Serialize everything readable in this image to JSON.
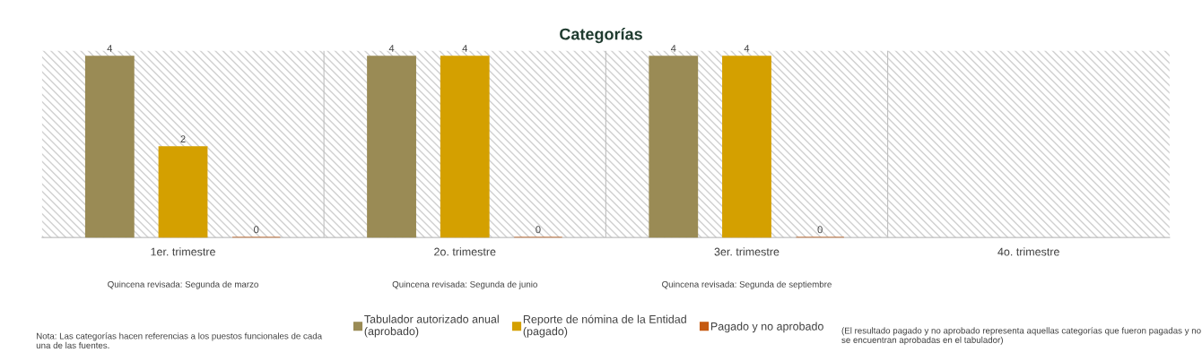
{
  "chart_data": {
    "type": "bar",
    "title": "Categorías",
    "categories": [
      "1er. trimestre",
      "2o. trimestre",
      "3er. trimestre",
      "4o. trimestre"
    ],
    "series": [
      {
        "name": "Tabulador autorizado anual\n(aprobado)",
        "color": "#9a8b55",
        "values": [
          4,
          4,
          4,
          null
        ]
      },
      {
        "name": "Reporte de nómina de la Entidad\n(pagado)",
        "color": "#d4a000",
        "values": [
          2,
          4,
          4,
          null
        ]
      },
      {
        "name": "Pagado y no aprobado",
        "color": "#c55a11",
        "values": [
          0,
          0,
          0,
          null
        ]
      }
    ],
    "data_labels": true,
    "legend": "bottom",
    "tick_labels": "x",
    "annotations": [
      "Quincena revisada: Segunda de marzo",
      "Quincena revisada: Segunda de junio",
      "Quincena revisada: Segunda de septiembre",
      "Nota: Las categorías hacen referencias a los puestos funcionales de cada una de las fuentes.",
      "(El resultado pagado y no aprobado representa aquellas categorías que fueron pagadas y no se encuentran aprobadas en el tabulador)"
    ]
  }
}
